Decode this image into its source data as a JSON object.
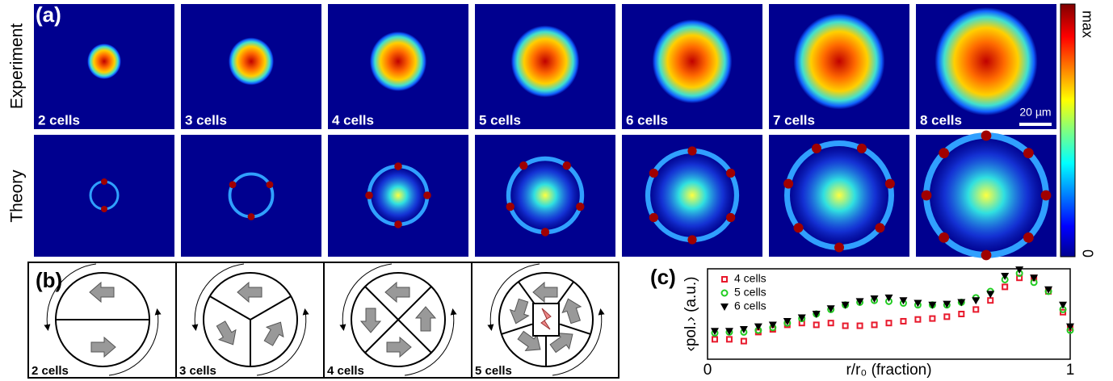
{
  "panel_a": {
    "label": "(a)",
    "row_labels": [
      "Experiment",
      "Theory"
    ],
    "cell_labels": [
      "2 cells",
      "3 cells",
      "4 cells",
      "5 cells",
      "6 cells",
      "7 cells",
      "8 cells"
    ],
    "scale_bar": "20 µm",
    "colorbar_max": "max",
    "colorbar_min": "0"
  },
  "panel_b": {
    "label": "(b)",
    "cell_labels": [
      "2 cells",
      "3 cells",
      "4 cells",
      "5 cells"
    ]
  },
  "chart_data": {
    "type": "scatter",
    "label": "(c)",
    "x_label": "r/r₀ (fraction)",
    "y_label": "‹pol.› (a.u.)",
    "x": [
      0.02,
      0.06,
      0.1,
      0.14,
      0.18,
      0.22,
      0.26,
      0.3,
      0.34,
      0.38,
      0.42,
      0.46,
      0.5,
      0.54,
      0.58,
      0.62,
      0.66,
      0.7,
      0.74,
      0.78,
      0.82,
      0.86,
      0.9,
      0.94,
      0.98,
      1.0
    ],
    "series": [
      {
        "name": "4 cells",
        "color": "#e8192c",
        "values": [
          0.22,
          0.22,
          0.2,
          0.3,
          0.33,
          0.38,
          0.4,
          0.38,
          0.4,
          0.37,
          0.37,
          0.38,
          0.4,
          0.42,
          0.44,
          0.45,
          0.47,
          0.5,
          0.55,
          0.65,
          0.8,
          0.9,
          0.9,
          0.75,
          0.52,
          0.35
        ]
      },
      {
        "name": "5 cells",
        "color": "#22cc22",
        "values": [
          0.29,
          0.3,
          0.3,
          0.32,
          0.35,
          0.4,
          0.45,
          0.5,
          0.55,
          0.6,
          0.63,
          0.65,
          0.64,
          0.62,
          0.6,
          0.6,
          0.6,
          0.63,
          0.68,
          0.75,
          0.88,
          0.95,
          0.85,
          0.75,
          0.55,
          0.32
        ]
      },
      {
        "name": "6 cells",
        "color": "#000000",
        "values": [
          0.31,
          0.31,
          0.33,
          0.36,
          0.38,
          0.42,
          0.46,
          0.5,
          0.56,
          0.6,
          0.64,
          0.67,
          0.68,
          0.65,
          0.62,
          0.6,
          0.61,
          0.63,
          0.65,
          0.72,
          0.92,
          0.99,
          0.9,
          0.77,
          0.6,
          0.36
        ]
      }
    ],
    "xlim": [
      0,
      1
    ],
    "xticks": [
      0,
      1
    ],
    "ylim": [
      0,
      1
    ]
  }
}
